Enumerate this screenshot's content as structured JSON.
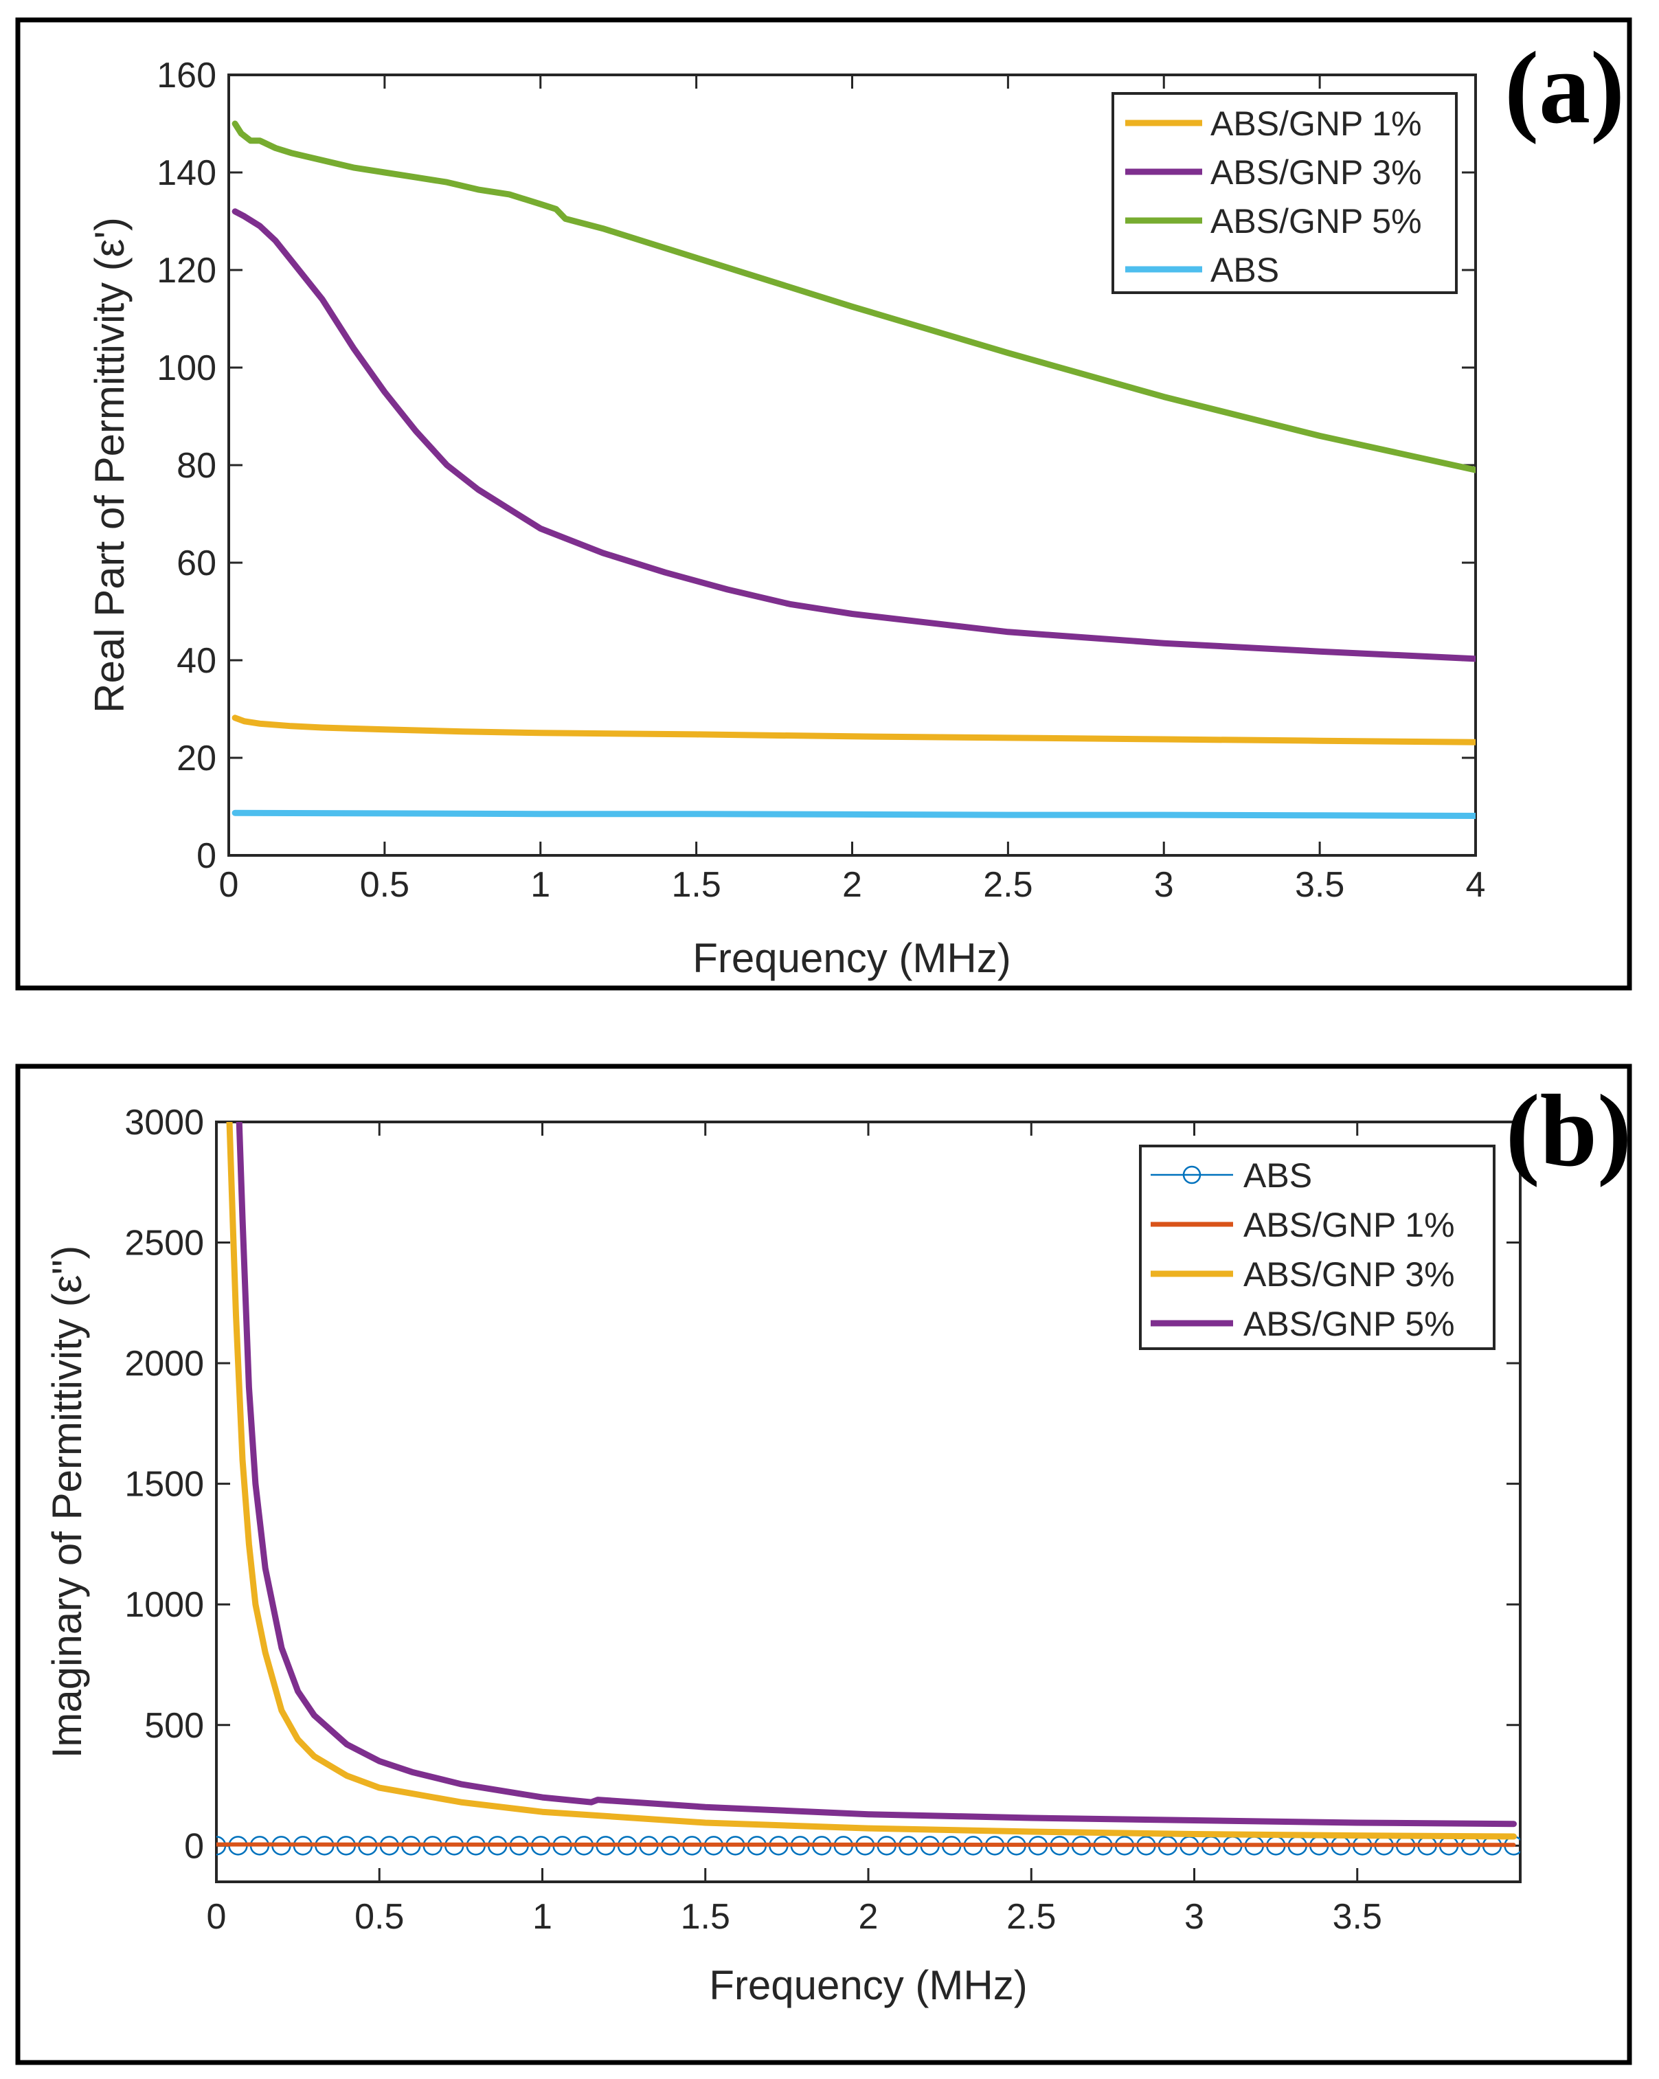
{
  "chart_data": [
    {
      "panel_label": "(a)",
      "type": "line",
      "xlabel": "Frequency (MHz)",
      "ylabel": "Real Part of Permittivity (ε')",
      "xlim": [
        0,
        4
      ],
      "ylim": [
        0,
        160
      ],
      "xticks": [
        0,
        0.5,
        1,
        1.5,
        2,
        2.5,
        3,
        3.5,
        4
      ],
      "xtick_labels": [
        "0",
        "0.5",
        "1",
        "1.5",
        "2",
        "2.5",
        "3",
        "3.5",
        "4"
      ],
      "yticks": [
        0,
        20,
        40,
        60,
        80,
        100,
        120,
        140,
        160
      ],
      "ytick_labels": [
        "0",
        "20",
        "40",
        "60",
        "80",
        "100",
        "120",
        "140",
        "160"
      ],
      "legend_position": "top-right",
      "grid": false,
      "series": [
        {
          "name": "ABS/GNP 1%",
          "color": "#EDB120",
          "x": [
            0.02,
            0.05,
            0.1,
            0.2,
            0.3,
            0.5,
            0.75,
            1.0,
            1.5,
            2.0,
            2.5,
            3.0,
            3.5,
            4.0
          ],
          "y": [
            28.2,
            27.5,
            27.0,
            26.5,
            26.2,
            25.8,
            25.4,
            25.1,
            24.8,
            24.4,
            24.1,
            23.8,
            23.5,
            23.2
          ]
        },
        {
          "name": "ABS/GNP 3%",
          "color": "#7E2F8E",
          "x": [
            0.02,
            0.05,
            0.1,
            0.15,
            0.2,
            0.3,
            0.4,
            0.5,
            0.6,
            0.7,
            0.8,
            0.9,
            1.0,
            1.2,
            1.4,
            1.6,
            1.8,
            2.0,
            2.5,
            3.0,
            3.5,
            4.0
          ],
          "y": [
            132,
            131,
            129,
            126,
            122,
            114,
            104,
            95,
            87,
            80,
            75,
            71,
            67,
            62,
            58,
            54.5,
            51.5,
            49.5,
            45.8,
            43.5,
            41.8,
            40.3
          ]
        },
        {
          "name": "ABS/GNP 5%",
          "color": "#77AC30",
          "x": [
            0.02,
            0.04,
            0.07,
            0.1,
            0.15,
            0.2,
            0.3,
            0.4,
            0.5,
            0.6,
            0.7,
            0.8,
            0.9,
            1.0,
            1.05,
            1.08,
            1.2,
            1.5,
            2.0,
            2.5,
            3.0,
            3.5,
            4.0
          ],
          "y": [
            150,
            148,
            146.5,
            146.5,
            145,
            144,
            142.5,
            141,
            140,
            139,
            138,
            136.5,
            135.5,
            133.5,
            132.5,
            130.5,
            128.5,
            122.5,
            112.5,
            103,
            94,
            86,
            79
          ]
        },
        {
          "name": "ABS",
          "color": "#4DBEEE",
          "x": [
            0.02,
            0.5,
            1.0,
            1.5,
            2.0,
            2.5,
            3.0,
            3.5,
            4.0
          ],
          "y": [
            8.7,
            8.6,
            8.5,
            8.5,
            8.4,
            8.3,
            8.3,
            8.2,
            8.1
          ]
        }
      ]
    },
    {
      "panel_label": "(b)",
      "type": "line",
      "xlabel": "Frequency (MHz)",
      "ylabel": "Imaginary of Permittivity (ε'')",
      "xlim": [
        0,
        4
      ],
      "ylim": [
        -150,
        3000
      ],
      "xticks": [
        0,
        0.5,
        1,
        1.5,
        2,
        2.5,
        3,
        3.5
      ],
      "xtick_labels": [
        "0",
        "0.5",
        "1",
        "1.5",
        "2",
        "2.5",
        "3",
        "3.5"
      ],
      "yticks": [
        0,
        500,
        1000,
        1500,
        2000,
        2500,
        3000
      ],
      "ytick_labels": [
        "0",
        "500",
        "1000",
        "1500",
        "2000",
        "2500",
        "3000"
      ],
      "legend_position": "top-right",
      "grid": false,
      "series": [
        {
          "name": "ABS",
          "color": "#0072BD",
          "marker": "circle",
          "x": [
            0.0,
            1.0,
            2.0,
            3.0,
            3.98
          ],
          "y": [
            0,
            0,
            0,
            0,
            0
          ]
        },
        {
          "name": "ABS/GNP 1%",
          "color": "#D95319",
          "x": [
            0.0,
            1.0,
            2.0,
            3.0,
            3.98
          ],
          "y": [
            5,
            4,
            4,
            3,
            3
          ]
        },
        {
          "name": "ABS/GNP 3%",
          "color": "#EDB120",
          "x": [
            0.04,
            0.05,
            0.06,
            0.08,
            0.1,
            0.12,
            0.15,
            0.2,
            0.25,
            0.3,
            0.4,
            0.5,
            0.75,
            1.0,
            1.5,
            2.0,
            2.5,
            3.0,
            3.5,
            3.98
          ],
          "y": [
            3000,
            2600,
            2200,
            1600,
            1250,
            1000,
            800,
            560,
            440,
            370,
            290,
            240,
            180,
            140,
            95,
            72,
            58,
            48,
            42,
            38
          ]
        },
        {
          "name": "ABS/GNP 5%",
          "color": "#7E2F8E",
          "x": [
            0.07,
            0.08,
            0.1,
            0.12,
            0.15,
            0.2,
            0.25,
            0.3,
            0.4,
            0.5,
            0.6,
            0.75,
            1.0,
            1.15,
            1.17,
            1.5,
            2.0,
            2.5,
            3.0,
            3.5,
            3.98
          ],
          "y": [
            3000,
            2600,
            1900,
            1500,
            1150,
            820,
            640,
            540,
            420,
            350,
            305,
            255,
            200,
            180,
            190,
            160,
            130,
            115,
            105,
            95,
            90
          ]
        }
      ]
    }
  ]
}
